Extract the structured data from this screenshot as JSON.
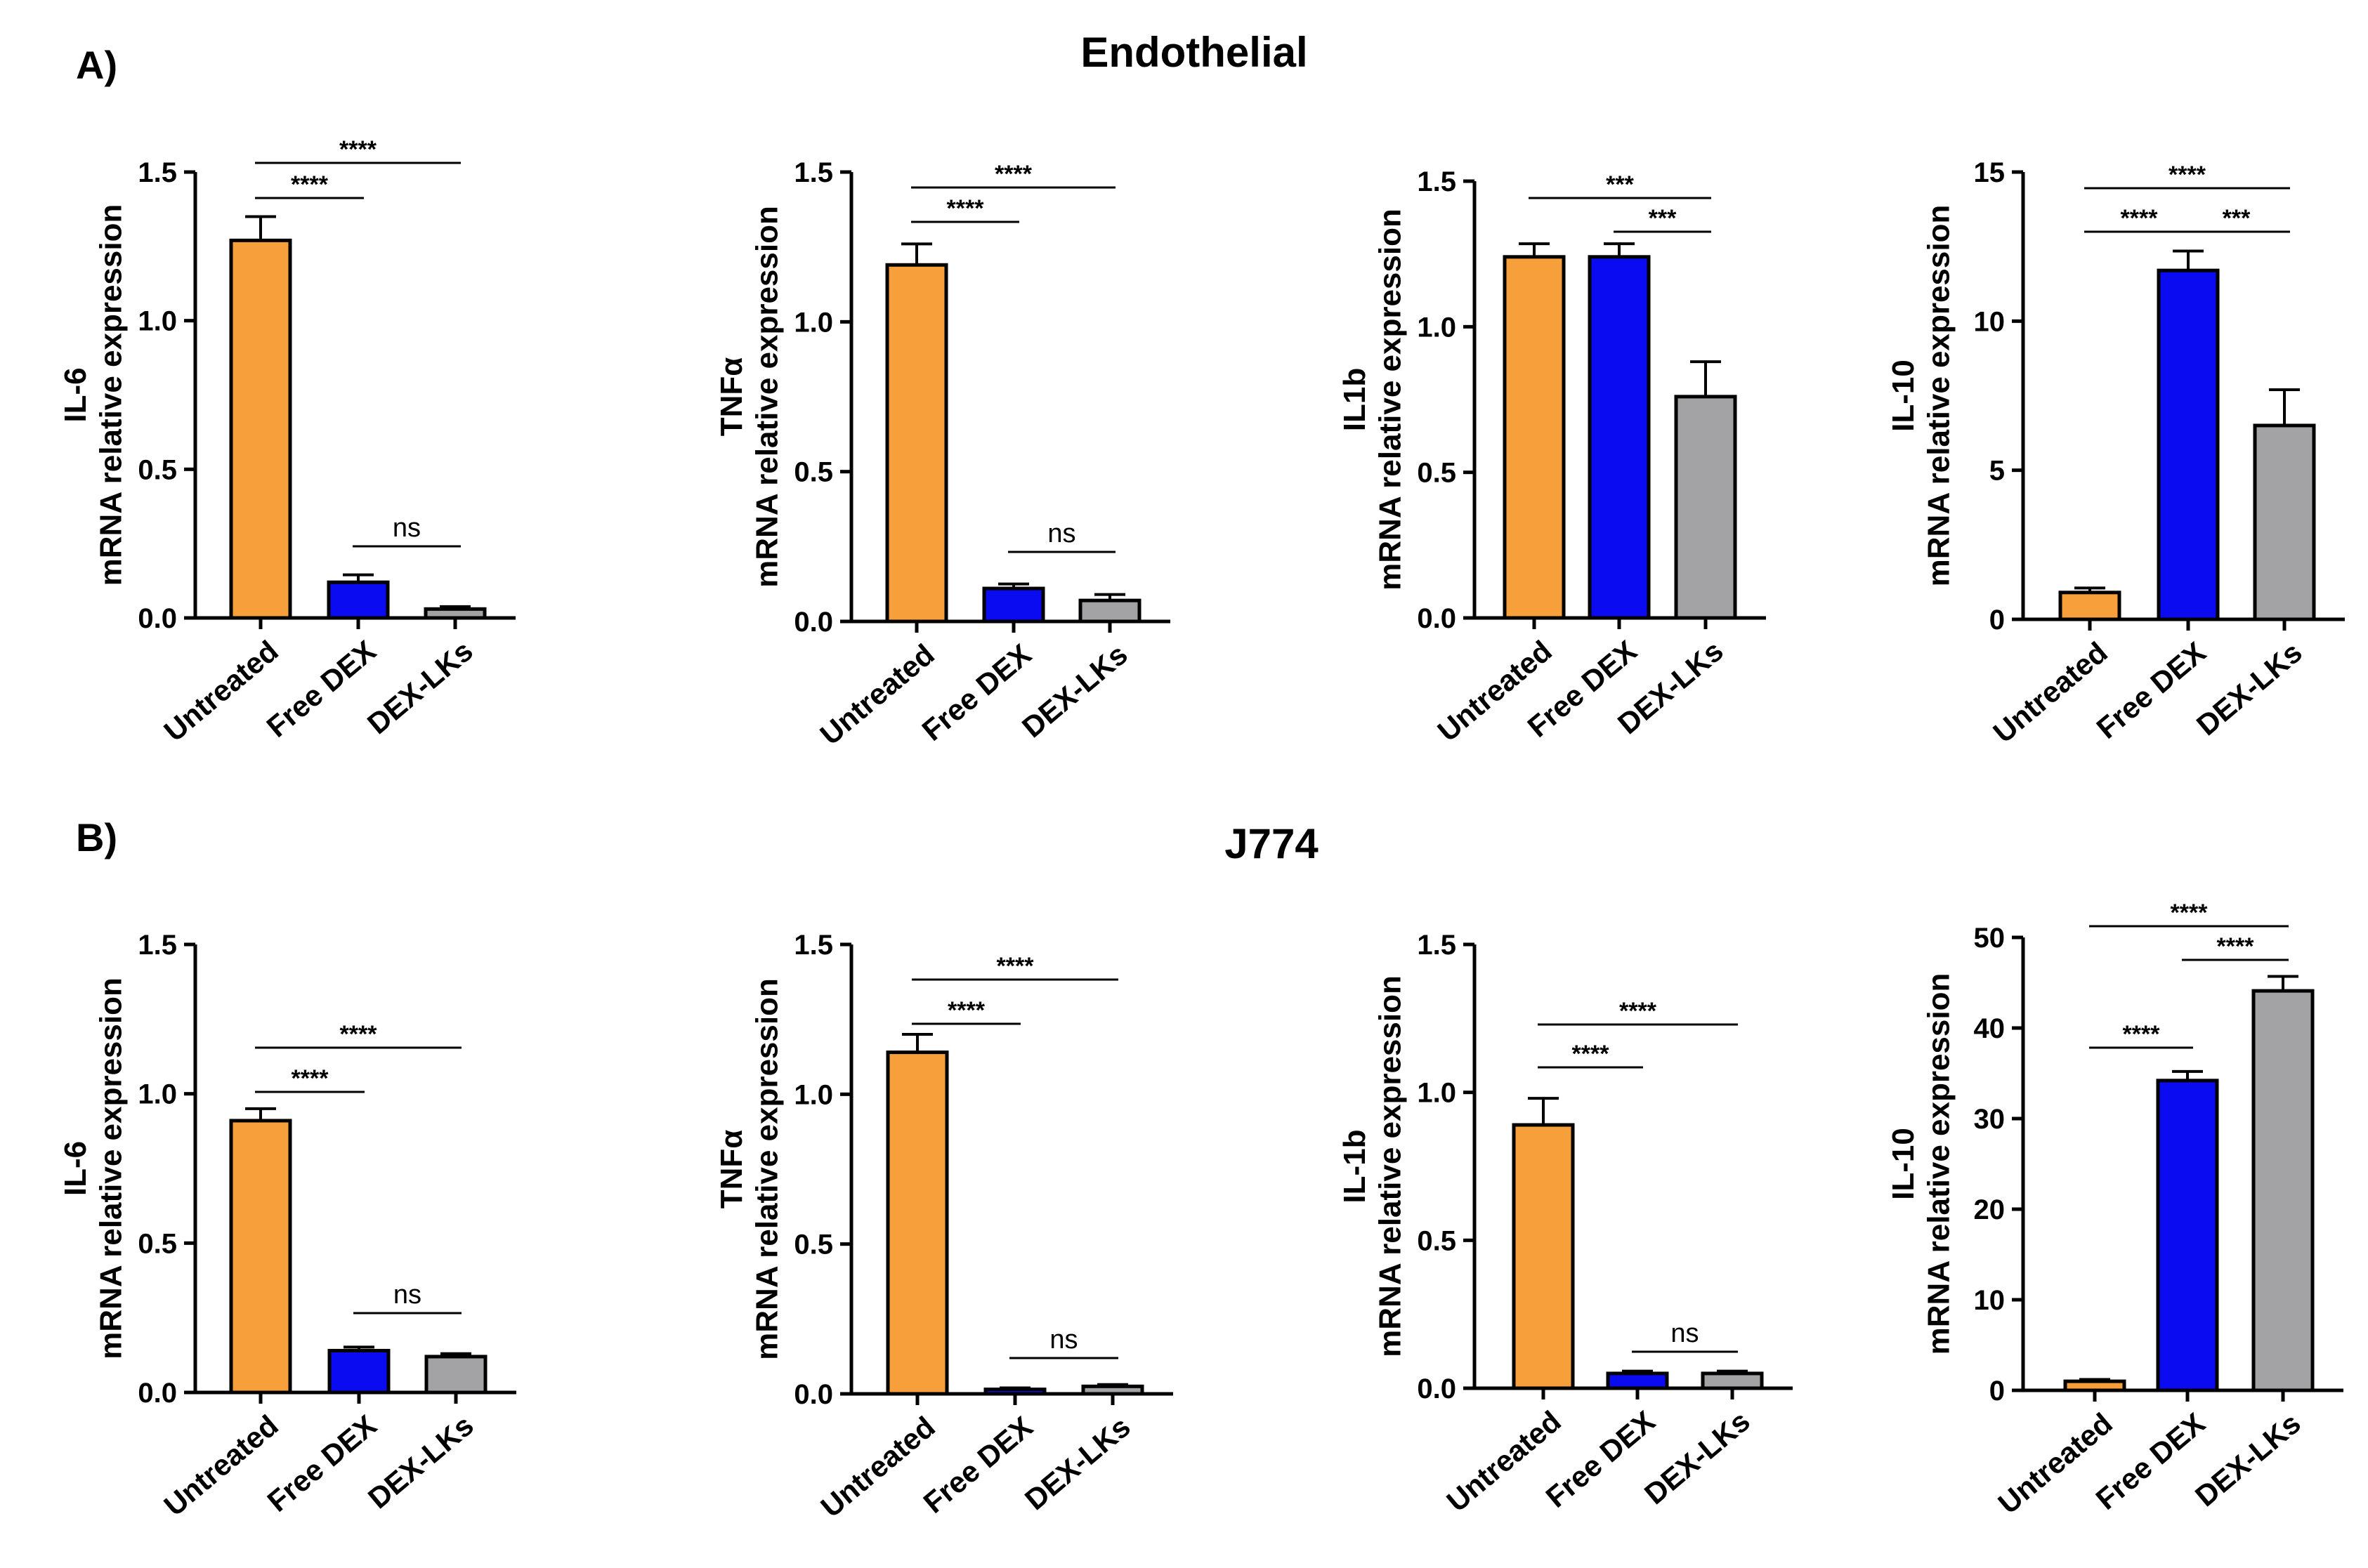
{
  "panels": [
    {
      "label": "A)",
      "title": "Endothelial"
    },
    {
      "label": "B)",
      "title": "J774"
    }
  ],
  "colors": {
    "Untreated": "#f7a03b",
    "Free DEX": "#0b0bf2",
    "DEX-LKs": "#a3a3a6"
  },
  "axis_subtitle": "mRNA relative expression",
  "chart_data": [
    {
      "type": "bar",
      "group": "Endothelial",
      "gene": "IL-6",
      "ylabel": "mRNA relative expression",
      "categories": [
        "Untreated",
        "Free DEX",
        "DEX-LKs"
      ],
      "values": [
        1.27,
        0.12,
        0.03
      ],
      "errors": [
        0.08,
        0.025,
        0.008
      ],
      "ylim": [
        0,
        1.5
      ],
      "ticks": [
        "0.0",
        "0.5",
        "1.0",
        "1.5"
      ],
      "significance": [
        {
          "from": 0,
          "to": 2,
          "label": "****"
        },
        {
          "from": 0,
          "to": 1,
          "label": "****"
        },
        {
          "from": 1,
          "to": 2,
          "label": "ns"
        }
      ]
    },
    {
      "type": "bar",
      "group": "Endothelial",
      "gene": "TNFα",
      "ylabel": "mRNA relative expression",
      "categories": [
        "Untreated",
        "Free DEX",
        "DEX-LKs"
      ],
      "values": [
        1.19,
        0.11,
        0.07
      ],
      "errors": [
        0.07,
        0.015,
        0.02
      ],
      "ylim": [
        0,
        1.5
      ],
      "ticks": [
        "0.0",
        "0.5",
        "1.0",
        "1.5"
      ],
      "significance": [
        {
          "from": 0,
          "to": 2,
          "label": "****"
        },
        {
          "from": 0,
          "to": 1,
          "label": "****"
        },
        {
          "from": 1,
          "to": 2,
          "label": "ns"
        }
      ]
    },
    {
      "type": "bar",
      "group": "Endothelial",
      "gene": "IL1b",
      "ylabel": "mRNA relative expression",
      "categories": [
        "Untreated",
        "Free DEX",
        "DEX-LKs"
      ],
      "values": [
        1.24,
        1.24,
        0.76
      ],
      "errors": [
        0.045,
        0.045,
        0.12
      ],
      "ylim": [
        0,
        1.5
      ],
      "ticks": [
        "0.0",
        "0.5",
        "1.0",
        "1.5"
      ],
      "significance": [
        {
          "from": 0,
          "to": 2,
          "label": "***"
        },
        {
          "from": 1,
          "to": 2,
          "label": "***"
        }
      ]
    },
    {
      "type": "bar",
      "group": "Endothelial",
      "gene": "IL-10",
      "ylabel": "mRNA relative expression",
      "categories": [
        "Untreated",
        "Free DEX",
        "DEX-LKs"
      ],
      "values": [
        0.9,
        11.7,
        6.5
      ],
      "errors": [
        0.15,
        0.65,
        1.2
      ],
      "ylim": [
        0,
        15
      ],
      "ticks": [
        "0",
        "5",
        "10",
        "15"
      ],
      "significance": [
        {
          "from": 0,
          "to": 2,
          "label": "****"
        },
        {
          "from": 0,
          "to": 1,
          "label": "****"
        },
        {
          "from": 1,
          "to": 2,
          "label": "***"
        }
      ]
    },
    {
      "type": "bar",
      "group": "J774",
      "gene": "IL-6",
      "ylabel": "mRNA relative expression",
      "categories": [
        "Untreated",
        "Free DEX",
        "DEX-LKs"
      ],
      "values": [
        0.91,
        0.14,
        0.12
      ],
      "errors": [
        0.04,
        0.012,
        0.01
      ],
      "ylim": [
        0,
        1.5
      ],
      "ticks": [
        "0.0",
        "0.5",
        "1.0",
        "1.5"
      ],
      "significance": [
        {
          "from": 0,
          "to": 2,
          "label": "****"
        },
        {
          "from": 0,
          "to": 1,
          "label": "****"
        },
        {
          "from": 1,
          "to": 2,
          "label": "ns"
        }
      ]
    },
    {
      "type": "bar",
      "group": "J774",
      "gene": "TNFα",
      "ylabel": "mRNA relative expression",
      "categories": [
        "Untreated",
        "Free DEX",
        "DEX-LKs"
      ],
      "values": [
        1.14,
        0.015,
        0.025
      ],
      "errors": [
        0.06,
        0.005,
        0.006
      ],
      "ylim": [
        0,
        1.5
      ],
      "ticks": [
        "0.0",
        "0.5",
        "1.0",
        "1.5"
      ],
      "significance": [
        {
          "from": 0,
          "to": 2,
          "label": "****"
        },
        {
          "from": 0,
          "to": 1,
          "label": "****"
        },
        {
          "from": 1,
          "to": 2,
          "label": "ns"
        }
      ]
    },
    {
      "type": "bar",
      "group": "J774",
      "gene": "IL-1b",
      "ylabel": "mRNA relative expression",
      "categories": [
        "Untreated",
        "Free DEX",
        "DEX-LKs"
      ],
      "values": [
        0.89,
        0.05,
        0.05
      ],
      "errors": [
        0.09,
        0.008,
        0.008
      ],
      "ylim": [
        0,
        1.5
      ],
      "ticks": [
        "0.0",
        "0.5",
        "1.0",
        "1.5"
      ],
      "significance": [
        {
          "from": 0,
          "to": 2,
          "label": "****"
        },
        {
          "from": 0,
          "to": 1,
          "label": "****"
        },
        {
          "from": 1,
          "to": 2,
          "label": "ns"
        }
      ]
    },
    {
      "type": "bar",
      "group": "J774",
      "gene": "IL-10",
      "ylabel": "mRNA relative expression",
      "categories": [
        "Untreated",
        "Free DEX",
        "DEX-LKs"
      ],
      "values": [
        1.0,
        34.2,
        44.1
      ],
      "errors": [
        0.2,
        1.0,
        1.6
      ],
      "ylim": [
        0,
        50
      ],
      "ticks": [
        "0",
        "10",
        "20",
        "30",
        "40",
        "50"
      ],
      "significance": [
        {
          "from": 0,
          "to": 2,
          "label": "****"
        },
        {
          "from": 1,
          "to": 2,
          "label": "****"
        },
        {
          "from": 0,
          "to": 1,
          "label": "****"
        }
      ]
    }
  ]
}
